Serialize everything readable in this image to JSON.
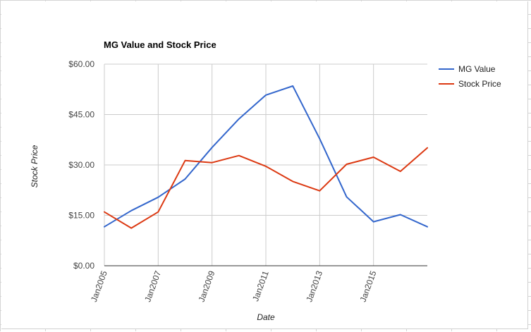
{
  "chart_data": {
    "type": "line",
    "title": "MG Value and Stock Price",
    "xlabel": "Date",
    "ylabel": "Stock Price",
    "x_tick_labels": [
      "Jan2005",
      "Jan2007",
      "Jan2009",
      "Jan2011",
      "Jan2013",
      "Jan2015"
    ],
    "y_tick_labels": [
      "$0.00",
      "$15.00",
      "$30.00",
      "$45.00",
      "$60.00"
    ],
    "y_ticks": [
      0,
      15,
      30,
      45,
      60
    ],
    "ylim": [
      0,
      60
    ],
    "x_years": [
      2005,
      2006,
      2007,
      2008,
      2009,
      2010,
      2011,
      2012,
      2013,
      2014,
      2015,
      2016,
      2017
    ],
    "x_dates": [
      "Jan2005",
      "Jan2006",
      "Jan2007",
      "Jan2008",
      "Jan2009",
      "Jan2010",
      "Jan2011",
      "Jan2012",
      "Jan2013",
      "Jan2014",
      "Jan2015",
      "Jan2016",
      "Jan2017"
    ],
    "grid": true,
    "legend_position": "right",
    "series": [
      {
        "name": "MG Value",
        "color": "#3366cc",
        "values": [
          11.6,
          16.4,
          20.4,
          25.8,
          35.2,
          43.7,
          50.8,
          53.5,
          37.8,
          20.5,
          13.1,
          15.2,
          11.6
        ]
      },
      {
        "name": "Stock Price",
        "color": "#dc3912",
        "values": [
          16.0,
          11.2,
          16.0,
          31.3,
          30.7,
          32.8,
          29.6,
          25.1,
          22.3,
          30.2,
          32.3,
          28.1,
          35.1
        ]
      }
    ]
  }
}
